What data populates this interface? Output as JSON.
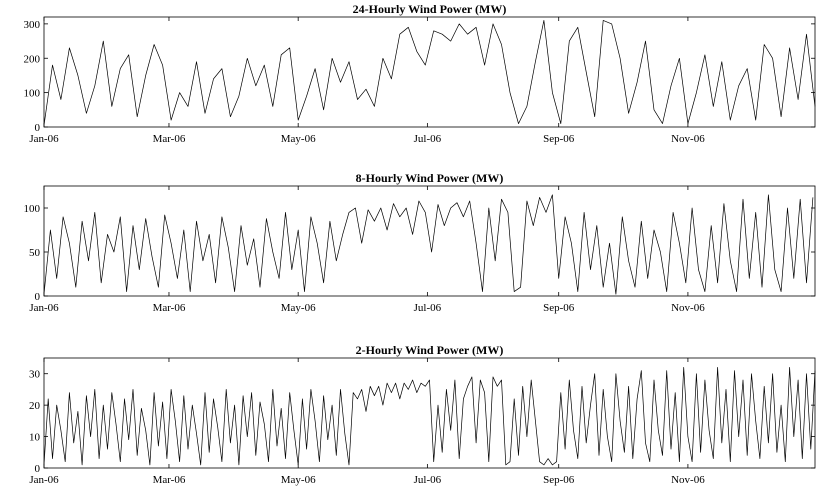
{
  "chart_data": [
    {
      "type": "line",
      "title": "24-Hourly Wind Power (MW)",
      "xlabel": "",
      "ylabel": "",
      "x_ticks": [
        "Jan-06",
        "Mar-06",
        "May-06",
        "Jul-06",
        "Sep-06",
        "Nov-06"
      ],
      "x_tick_days": [
        0,
        59,
        120,
        181,
        243,
        304
      ],
      "x_range": [
        0,
        364
      ],
      "ylim": [
        0,
        320
      ],
      "y_ticks": [
        0,
        100,
        200,
        300
      ],
      "grid": false,
      "series": [
        {
          "x": [
            0,
            4,
            8,
            12,
            16,
            20,
            24,
            28,
            32,
            36,
            40,
            44,
            48,
            52,
            56,
            60,
            64,
            68,
            72,
            76,
            80,
            84,
            88,
            92,
            96,
            100,
            104,
            108,
            112,
            116,
            120,
            124,
            128,
            132,
            136,
            140,
            144,
            148,
            152,
            156,
            160,
            164,
            168,
            172,
            176,
            180,
            184,
            188,
            192,
            196,
            200,
            204,
            208,
            212,
            216,
            220,
            224,
            228,
            232,
            236,
            240,
            244,
            248,
            252,
            256,
            260,
            264,
            268,
            272,
            276,
            280,
            284,
            288,
            292,
            296,
            300,
            304,
            308,
            312,
            316,
            320,
            324,
            328,
            332,
            336,
            340,
            344,
            348,
            352,
            356,
            360,
            364
          ],
          "y": [
            5,
            180,
            80,
            230,
            150,
            40,
            120,
            250,
            60,
            170,
            210,
            30,
            150,
            240,
            180,
            20,
            100,
            60,
            190,
            40,
            140,
            170,
            30,
            90,
            200,
            120,
            180,
            60,
            210,
            230,
            20,
            90,
            170,
            50,
            200,
            130,
            190,
            80,
            110,
            60,
            200,
            140,
            270,
            290,
            220,
            180,
            280,
            270,
            250,
            300,
            270,
            290,
            180,
            300,
            240,
            100,
            10,
            60,
            190,
            310,
            100,
            10,
            250,
            290,
            160,
            30,
            310,
            300,
            200,
            40,
            130,
            250,
            50,
            10,
            120,
            200,
            10,
            100,
            210,
            60,
            190,
            20,
            120,
            170,
            20,
            240,
            200,
            30,
            230,
            80,
            270,
            60
          ]
        }
      ]
    },
    {
      "type": "line",
      "title": "8-Hourly Wind Power (MW)",
      "xlabel": "",
      "ylabel": "",
      "x_ticks": [
        "Jan-06",
        "Mar-06",
        "May-06",
        "Jul-06",
        "Sep-06",
        "Nov-06"
      ],
      "x_tick_days": [
        0,
        59,
        120,
        181,
        243,
        304
      ],
      "x_range": [
        0,
        364
      ],
      "ylim": [
        0,
        125
      ],
      "y_ticks": [
        0,
        50,
        100
      ],
      "grid": false,
      "series": [
        {
          "x": [
            0,
            3,
            6,
            9,
            12,
            15,
            18,
            21,
            24,
            27,
            30,
            33,
            36,
            39,
            42,
            45,
            48,
            51,
            54,
            57,
            60,
            63,
            66,
            69,
            72,
            75,
            78,
            81,
            84,
            87,
            90,
            93,
            96,
            99,
            102,
            105,
            108,
            111,
            114,
            117,
            120,
            123,
            126,
            129,
            132,
            135,
            138,
            141,
            144,
            147,
            150,
            153,
            156,
            159,
            162,
            165,
            168,
            171,
            174,
            177,
            180,
            183,
            186,
            189,
            192,
            195,
            198,
            201,
            204,
            207,
            210,
            213,
            216,
            219,
            222,
            225,
            228,
            231,
            234,
            237,
            240,
            243,
            246,
            249,
            252,
            255,
            258,
            261,
            264,
            267,
            270,
            273,
            276,
            279,
            282,
            285,
            288,
            291,
            294,
            297,
            300,
            303,
            306,
            309,
            312,
            315,
            318,
            321,
            324,
            327,
            330,
            333,
            336,
            339,
            342,
            345,
            348,
            351,
            354,
            357,
            360,
            363
          ],
          "y": [
            2,
            75,
            20,
            90,
            60,
            10,
            85,
            40,
            95,
            15,
            70,
            50,
            90,
            5,
            80,
            30,
            88,
            45,
            10,
            92,
            60,
            20,
            75,
            5,
            85,
            40,
            70,
            15,
            90,
            55,
            5,
            80,
            35,
            65,
            10,
            88,
            50,
            20,
            95,
            30,
            75,
            5,
            90,
            60,
            15,
            85,
            40,
            70,
            95,
            100,
            60,
            98,
            85,
            100,
            75,
            105,
            90,
            100,
            70,
            108,
            95,
            50,
            104,
            80,
            100,
            106,
            90,
            108,
            60,
            5,
            100,
            40,
            110,
            95,
            5,
            10,
            108,
            80,
            112,
            95,
            115,
            20,
            90,
            60,
            5,
            95,
            30,
            80,
            10,
            60,
            2,
            90,
            40,
            10,
            85,
            20,
            75,
            50,
            5,
            95,
            60,
            15,
            100,
            30,
            5,
            80,
            15,
            105,
            40,
            5,
            110,
            20,
            95,
            10,
            115,
            30,
            5,
            100,
            20,
            110,
            15,
            112
          ]
        }
      ]
    },
    {
      "type": "line",
      "title": "2-Hourly Wind Power (MW)",
      "xlabel": "",
      "ylabel": "",
      "x_ticks": [
        "Jan-06",
        "Mar-06",
        "May-06",
        "Jul-06",
        "Sep-06",
        "Nov-06"
      ],
      "x_tick_days": [
        0,
        59,
        120,
        181,
        243,
        304
      ],
      "x_range": [
        0,
        364
      ],
      "ylim": [
        0,
        35
      ],
      "y_ticks": [
        0,
        10,
        20,
        30
      ],
      "grid": false,
      "series": [
        {
          "x": [
            0,
            2,
            4,
            6,
            8,
            10,
            12,
            14,
            16,
            18,
            20,
            22,
            24,
            26,
            28,
            30,
            32,
            34,
            36,
            38,
            40,
            42,
            44,
            46,
            48,
            50,
            52,
            54,
            56,
            58,
            60,
            62,
            64,
            66,
            68,
            70,
            72,
            74,
            76,
            78,
            80,
            82,
            84,
            86,
            88,
            90,
            92,
            94,
            96,
            98,
            100,
            102,
            104,
            106,
            108,
            110,
            112,
            114,
            116,
            118,
            120,
            122,
            124,
            126,
            128,
            130,
            132,
            134,
            136,
            138,
            140,
            142,
            144,
            146,
            148,
            150,
            152,
            154,
            156,
            158,
            160,
            162,
            164,
            166,
            168,
            170,
            172,
            174,
            176,
            178,
            180,
            182,
            184,
            186,
            188,
            190,
            192,
            194,
            196,
            198,
            200,
            202,
            204,
            206,
            208,
            210,
            212,
            214,
            216,
            218,
            220,
            222,
            224,
            226,
            228,
            230,
            232,
            234,
            236,
            238,
            240,
            242,
            244,
            246,
            248,
            250,
            252,
            254,
            256,
            258,
            260,
            262,
            264,
            266,
            268,
            270,
            272,
            274,
            276,
            278,
            280,
            282,
            284,
            286,
            288,
            290,
            292,
            294,
            296,
            298,
            300,
            302,
            304,
            306,
            308,
            310,
            312,
            314,
            316,
            318,
            320,
            322,
            324,
            326,
            328,
            330,
            332,
            334,
            336,
            338,
            340,
            342,
            344,
            346,
            348,
            350,
            352,
            354,
            356,
            358,
            360,
            362,
            364
          ],
          "y": [
            1,
            22,
            3,
            20,
            12,
            2,
            24,
            8,
            18,
            1,
            23,
            10,
            25,
            3,
            20,
            6,
            24,
            14,
            2,
            22,
            9,
            25,
            4,
            19,
            12,
            1,
            24,
            7,
            21,
            3,
            25,
            15,
            2,
            23,
            6,
            20,
            11,
            1,
            24,
            5,
            22,
            13,
            2,
            25,
            8,
            20,
            1,
            23,
            10,
            24,
            4,
            21,
            14,
            2,
            25,
            7,
            19,
            3,
            24,
            12,
            1,
            22,
            6,
            25,
            15,
            2,
            23,
            9,
            20,
            4,
            25,
            11,
            1,
            24,
            22,
            25,
            18,
            26,
            23,
            26,
            20,
            27,
            24,
            27,
            22,
            27,
            25,
            28,
            24,
            27,
            26,
            28,
            2,
            20,
            5,
            25,
            12,
            28,
            3,
            22,
            26,
            29,
            8,
            28,
            24,
            2,
            29,
            26,
            28,
            1,
            2,
            22,
            4,
            26,
            10,
            28,
            15,
            2,
            1,
            3,
            1,
            2,
            24,
            6,
            28,
            12,
            3,
            26,
            8,
            20,
            30,
            4,
            25,
            10,
            2,
            30,
            15,
            5,
            26,
            3,
            22,
            31,
            8,
            2,
            28,
            12,
            4,
            31,
            6,
            24,
            2,
            32,
            10,
            2,
            30,
            5,
            28,
            12,
            3,
            32,
            8,
            25,
            2,
            31,
            10,
            28,
            4,
            30,
            15,
            3,
            26,
            8,
            30,
            5,
            20,
            2,
            32,
            10,
            28,
            3,
            30,
            6,
            31
          ]
        }
      ]
    }
  ]
}
